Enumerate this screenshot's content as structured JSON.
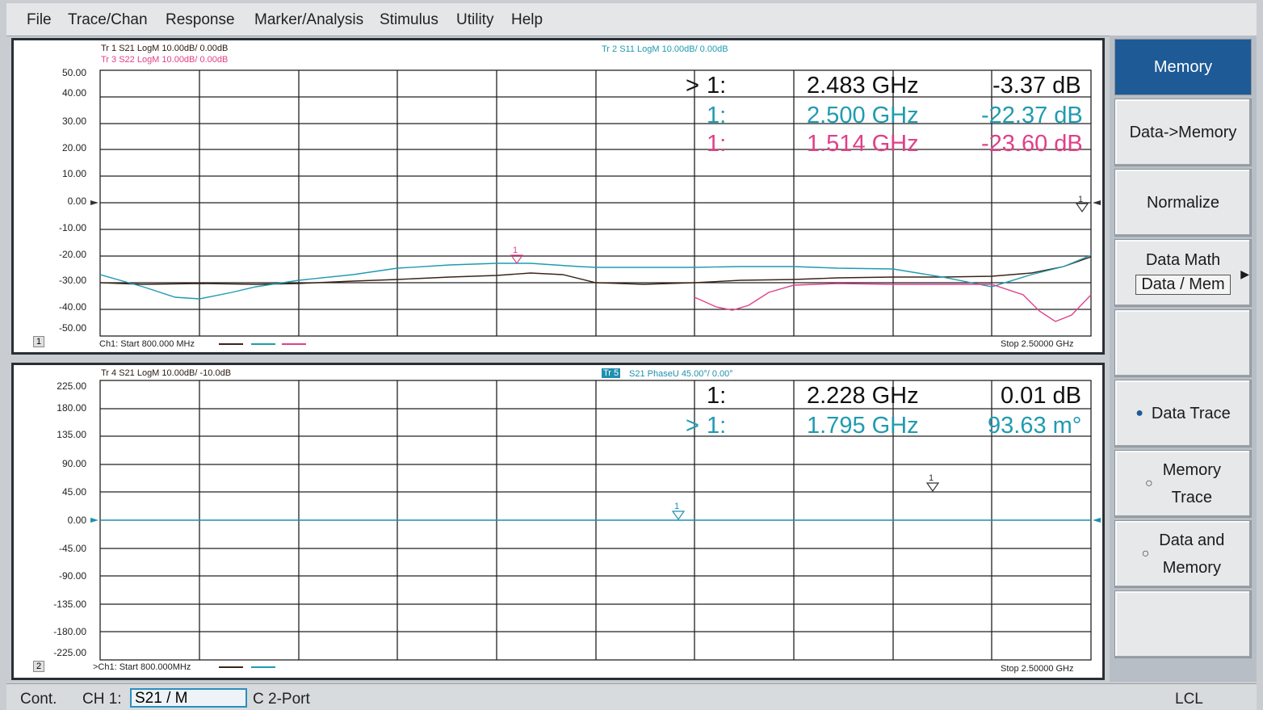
{
  "menu": [
    "File",
    "Trace/Chan",
    "Response",
    "Marker/Analysis",
    "Stimulus",
    "Utility",
    "Help"
  ],
  "colors": {
    "tr1": "#3a2418",
    "tr2": "#1f9bb0",
    "tr3": "#e0408a",
    "tr5": "#1f8fb0",
    "accent": "#1e5a96"
  },
  "channel1": {
    "num": "1",
    "tr1_label": "Tr 1  S21 LogM 10.00dB/  0.00dB",
    "tr3_label": "Tr 3  S22 LogM 10.00dB/  0.00dB",
    "tr2_label": "Tr 2  S11 LogM 10.00dB/  0.00dB",
    "y_ticks": [
      "50.00",
      "40.00",
      "30.00",
      "20.00",
      "10.00",
      "0.00",
      "-10.00",
      "-20.00",
      "-30.00",
      "-40.00",
      "-50.00"
    ],
    "start_text": "Ch1: Start  800.000 MHz",
    "stop_text": "Stop  2.50000 GHz",
    "markers": [
      {
        "active": ">",
        "id": "1:",
        "freq": "2.483 GHz",
        "value": "-3.37 dB",
        "color": "#111111"
      },
      {
        "active": "",
        "id": "1:",
        "freq": "2.500 GHz",
        "value": "-22.37 dB",
        "color": "#1f9bb0"
      },
      {
        "active": "",
        "id": "1:",
        "freq": "1.514 GHz",
        "value": "-23.60 dB",
        "color": "#e0408a"
      }
    ]
  },
  "channel2": {
    "num": "2",
    "tr4_label": "Tr 4  S21 LogM 10.00dB/  -10.0dB",
    "tr5_tag": "Tr 5",
    "tr5_label": "S21 PhaseU 45.00°/  0.00°",
    "y_ticks": [
      "225.00",
      "180.00",
      "135.00",
      "90.00",
      "45.00",
      "0.00",
      "-45.00",
      "-90.00",
      "-135.00",
      "-180.00",
      "-225.00"
    ],
    "start_text": ">Ch1: Start  800.000MHz",
    "stop_text": "Stop  2.50000 GHz",
    "markers": [
      {
        "active": "",
        "id": "1:",
        "freq": "2.228 GHz",
        "value": "0.01 dB",
        "color": "#111111"
      },
      {
        "active": ">",
        "id": "1:",
        "freq": "1.795 GHz",
        "value": "93.63 m°",
        "color": "#1f9bb0"
      }
    ]
  },
  "sidebar": {
    "title": "Memory",
    "data_to_memory": "Data->Memory",
    "normalize": "Normalize",
    "data_math": "Data Math",
    "data_math_value": "Data / Mem",
    "data_trace": "Data Trace",
    "memory_trace_1": "Memory",
    "memory_trace_2": "Trace",
    "data_and_memory_1": "Data and",
    "data_and_memory_2": "Memory"
  },
  "status": {
    "mode": "Cont.",
    "channel": "CH 1:",
    "trace": "S21 / M",
    "cal": "C  2-Port",
    "remote": "LCL"
  }
}
